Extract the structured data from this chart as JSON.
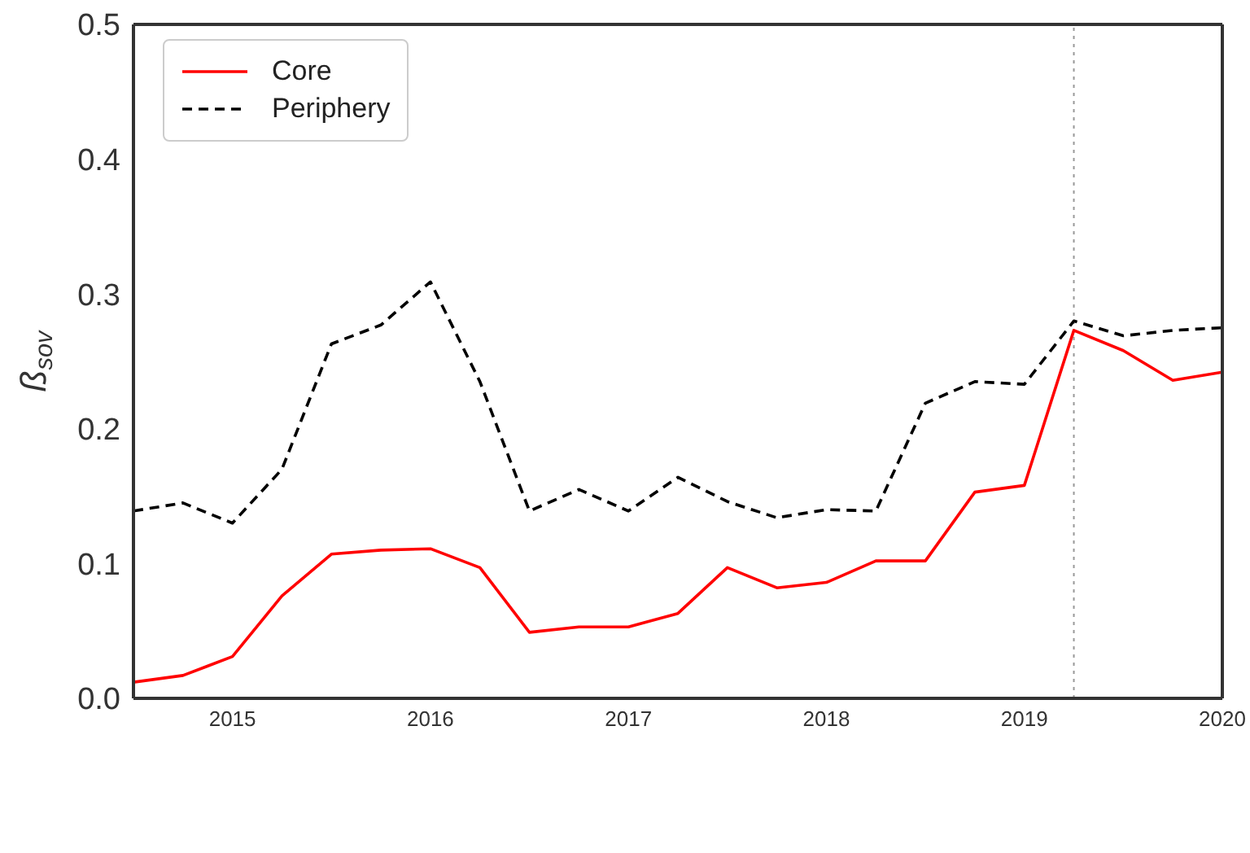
{
  "chart_data": {
    "type": "line",
    "ylabel": "ß$_{sov}$",
    "x": [
      2014.5,
      2014.75,
      2015,
      2015.25,
      2015.5,
      2015.75,
      2016,
      2016.25,
      2016.5,
      2016.75,
      2017,
      2017.25,
      2017.5,
      2017.75,
      2018,
      2018.25,
      2018.5,
      2018.75,
      2019,
      2019.25,
      2019.5,
      2019.75,
      2020
    ],
    "series": [
      {
        "name": "Core",
        "color": "#ff0000",
        "line_style": "solid",
        "values": [
          0.012,
          0.017,
          0.031,
          0.076,
          0.107,
          0.11,
          0.111,
          0.097,
          0.049,
          0.053,
          0.053,
          0.063,
          0.097,
          0.082,
          0.086,
          0.102,
          0.102,
          0.153,
          0.158,
          0.273,
          0.258,
          0.236,
          0.242
        ]
      },
      {
        "name": "Periphery",
        "color": "#000000",
        "line_style": "dashed",
        "values": [
          0.139,
          0.145,
          0.13,
          0.17,
          0.263,
          0.277,
          0.309,
          0.235,
          0.139,
          0.155,
          0.139,
          0.164,
          0.146,
          0.134,
          0.14,
          0.139,
          0.219,
          0.235,
          0.233,
          0.28,
          0.269,
          0.273,
          0.275
        ]
      }
    ],
    "xlim": [
      2014.5,
      2020
    ],
    "xticks": [
      2015,
      2016,
      2017,
      2018,
      2019,
      2020
    ],
    "ylim": [
      0,
      0.5
    ],
    "yticks": [
      {
        "value": 0,
        "label": "0.0"
      },
      {
        "value": 0.1,
        "label": "0.1"
      },
      {
        "value": 0.2,
        "label": "0.2"
      },
      {
        "value": 0.3,
        "label": "0.3"
      },
      {
        "value": 0.4,
        "label": "0.4"
      },
      {
        "value": 0.5,
        "label": "0.5"
      }
    ],
    "ref_lines": [
      {
        "axis": "x",
        "value": 2019.25,
        "color": "#999999",
        "line_style": "dotted"
      }
    ],
    "grid": false,
    "legend": "top left"
  }
}
